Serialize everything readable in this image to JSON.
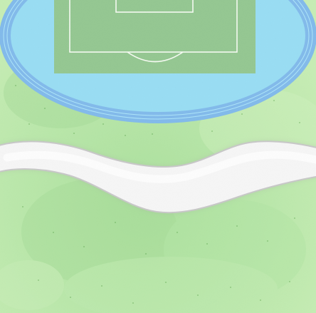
{
  "scene": {
    "type": "top-down game map tile",
    "elements": [
      "grass-background",
      "stadium-track",
      "soccer-pitch",
      "winding-path"
    ]
  },
  "colors": {
    "grass_light": "#93d96f",
    "grass_mid": "#6fc94f",
    "grass_dark": "#4fae3a",
    "track_outer": "#1f86e0",
    "track_inner": "#46c1ea",
    "pitch": "#3e9a38",
    "pitch_lines": "#f3f7ea",
    "path_fill": "#efefef",
    "path_edge": "#9a9a9a"
  }
}
